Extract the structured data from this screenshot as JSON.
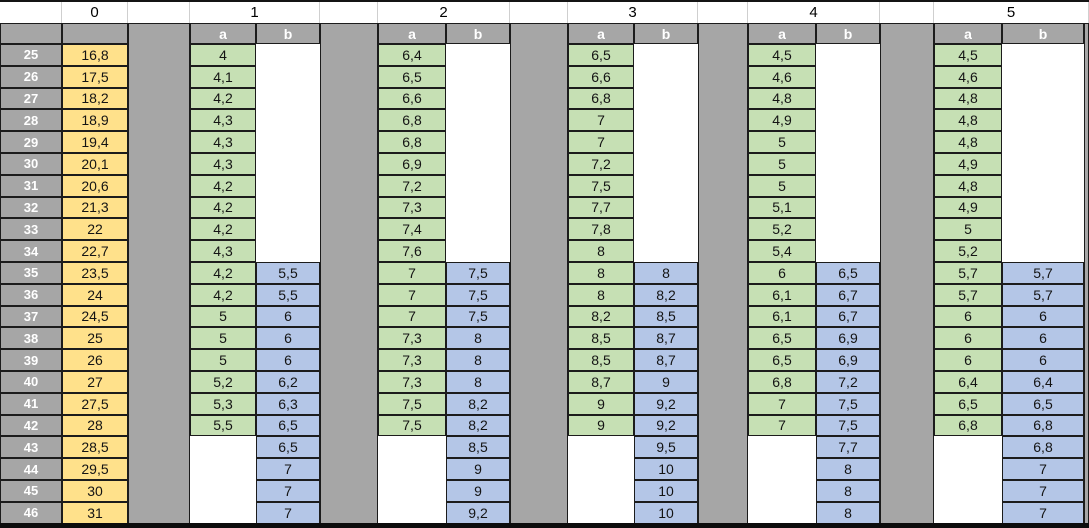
{
  "table": {
    "corner_label": "",
    "col0_header": "0",
    "row_numbers": [
      "25",
      "26",
      "27",
      "28",
      "29",
      "30",
      "31",
      "32",
      "33",
      "34",
      "35",
      "36",
      "37",
      "38",
      "39",
      "40",
      "41",
      "42",
      "43",
      "44",
      "45",
      "46"
    ],
    "col0_values": [
      "16,8",
      "17,5",
      "18,2",
      "18,9",
      "19,4",
      "20,1",
      "20,6",
      "21,3",
      "22",
      "22,7",
      "23,5",
      "24",
      "24,5",
      "25",
      "26",
      "27",
      "27,5",
      "28",
      "28,5",
      "29,5",
      "30",
      "31"
    ],
    "groups": [
      {
        "number": "1",
        "sub_a": "a",
        "sub_b": "b",
        "a": [
          "4",
          "4,1",
          "4,2",
          "4,3",
          "4,3",
          "4,3",
          "4,2",
          "4,2",
          "4,2",
          "4,3",
          "4,2",
          "4,2",
          "5",
          "5",
          "5",
          "5,2",
          "5,3",
          "5,5",
          "",
          "",
          "",
          ""
        ],
        "b": [
          "",
          "",
          "",
          "",
          "",
          "",
          "",
          "",
          "",
          "",
          "5,5",
          "5,5",
          "6",
          "6",
          "6",
          "6,2",
          "6,3",
          "6,5",
          "6,5",
          "7",
          "7",
          "7"
        ]
      },
      {
        "number": "2",
        "sub_a": "a",
        "sub_b": "b",
        "a": [
          "6,4",
          "6,5",
          "6,6",
          "6,8",
          "6,8",
          "6,9",
          "7,2",
          "7,3",
          "7,4",
          "7,6",
          "7",
          "7",
          "7",
          "7,3",
          "7,3",
          "7,3",
          "7,5",
          "7,5",
          "",
          "",
          "",
          ""
        ],
        "b": [
          "",
          "",
          "",
          "",
          "",
          "",
          "",
          "",
          "",
          "",
          "7,5",
          "7,5",
          "7,5",
          "8",
          "8",
          "8",
          "8,2",
          "8,2",
          "8,5",
          "9",
          "9",
          "9,2"
        ]
      },
      {
        "number": "3",
        "sub_a": "a",
        "sub_b": "b",
        "a": [
          "6,5",
          "6,6",
          "6,8",
          "7",
          "7",
          "7,2",
          "7,5",
          "7,7",
          "7,8",
          "8",
          "8",
          "8",
          "8,2",
          "8,5",
          "8,5",
          "8,7",
          "9",
          "9",
          "",
          "",
          "",
          ""
        ],
        "b": [
          "",
          "",
          "",
          "",
          "",
          "",
          "",
          "",
          "",
          "",
          "8",
          "8,2",
          "8,5",
          "8,7",
          "8,7",
          "9",
          "9,2",
          "9,2",
          "9,5",
          "10",
          "10",
          "10"
        ]
      },
      {
        "number": "4",
        "sub_a": "a",
        "sub_b": "b",
        "a": [
          "4,5",
          "4,6",
          "4,8",
          "4,9",
          "5",
          "5",
          "5",
          "5,1",
          "5,2",
          "5,4",
          "6",
          "6,1",
          "6,1",
          "6,5",
          "6,5",
          "6,8",
          "7",
          "7",
          "",
          "",
          "",
          ""
        ],
        "b": [
          "",
          "",
          "",
          "",
          "",
          "",
          "",
          "",
          "",
          "",
          "6,5",
          "6,7",
          "6,7",
          "6,9",
          "6,9",
          "7,2",
          "7,5",
          "7,5",
          "7,7",
          "8",
          "8",
          "8"
        ]
      },
      {
        "number": "5",
        "sub_a": "a",
        "sub_b": "b",
        "a": [
          "4,5",
          "4,6",
          "4,8",
          "4,8",
          "4,8",
          "4,9",
          "4,8",
          "4,9",
          "5",
          "5,2",
          "5,7",
          "5,7",
          "6",
          "6",
          "6",
          "6,4",
          "6,5",
          "6,8",
          "",
          "",
          "",
          ""
        ],
        "b": [
          "",
          "",
          "",
          "",
          "",
          "",
          "",
          "",
          "",
          "",
          "5,7",
          "5,7",
          "6",
          "6",
          "6",
          "6,4",
          "6,5",
          "6,8",
          "6,8",
          "7",
          "7",
          "7"
        ]
      }
    ]
  },
  "colors": {
    "header_gray": "#a6a6a6",
    "col0_yellow": "#ffe18b",
    "a_green": "#c6e0b4",
    "b_blue": "#b4c6e7",
    "border_dark": "#1c1c1c"
  }
}
